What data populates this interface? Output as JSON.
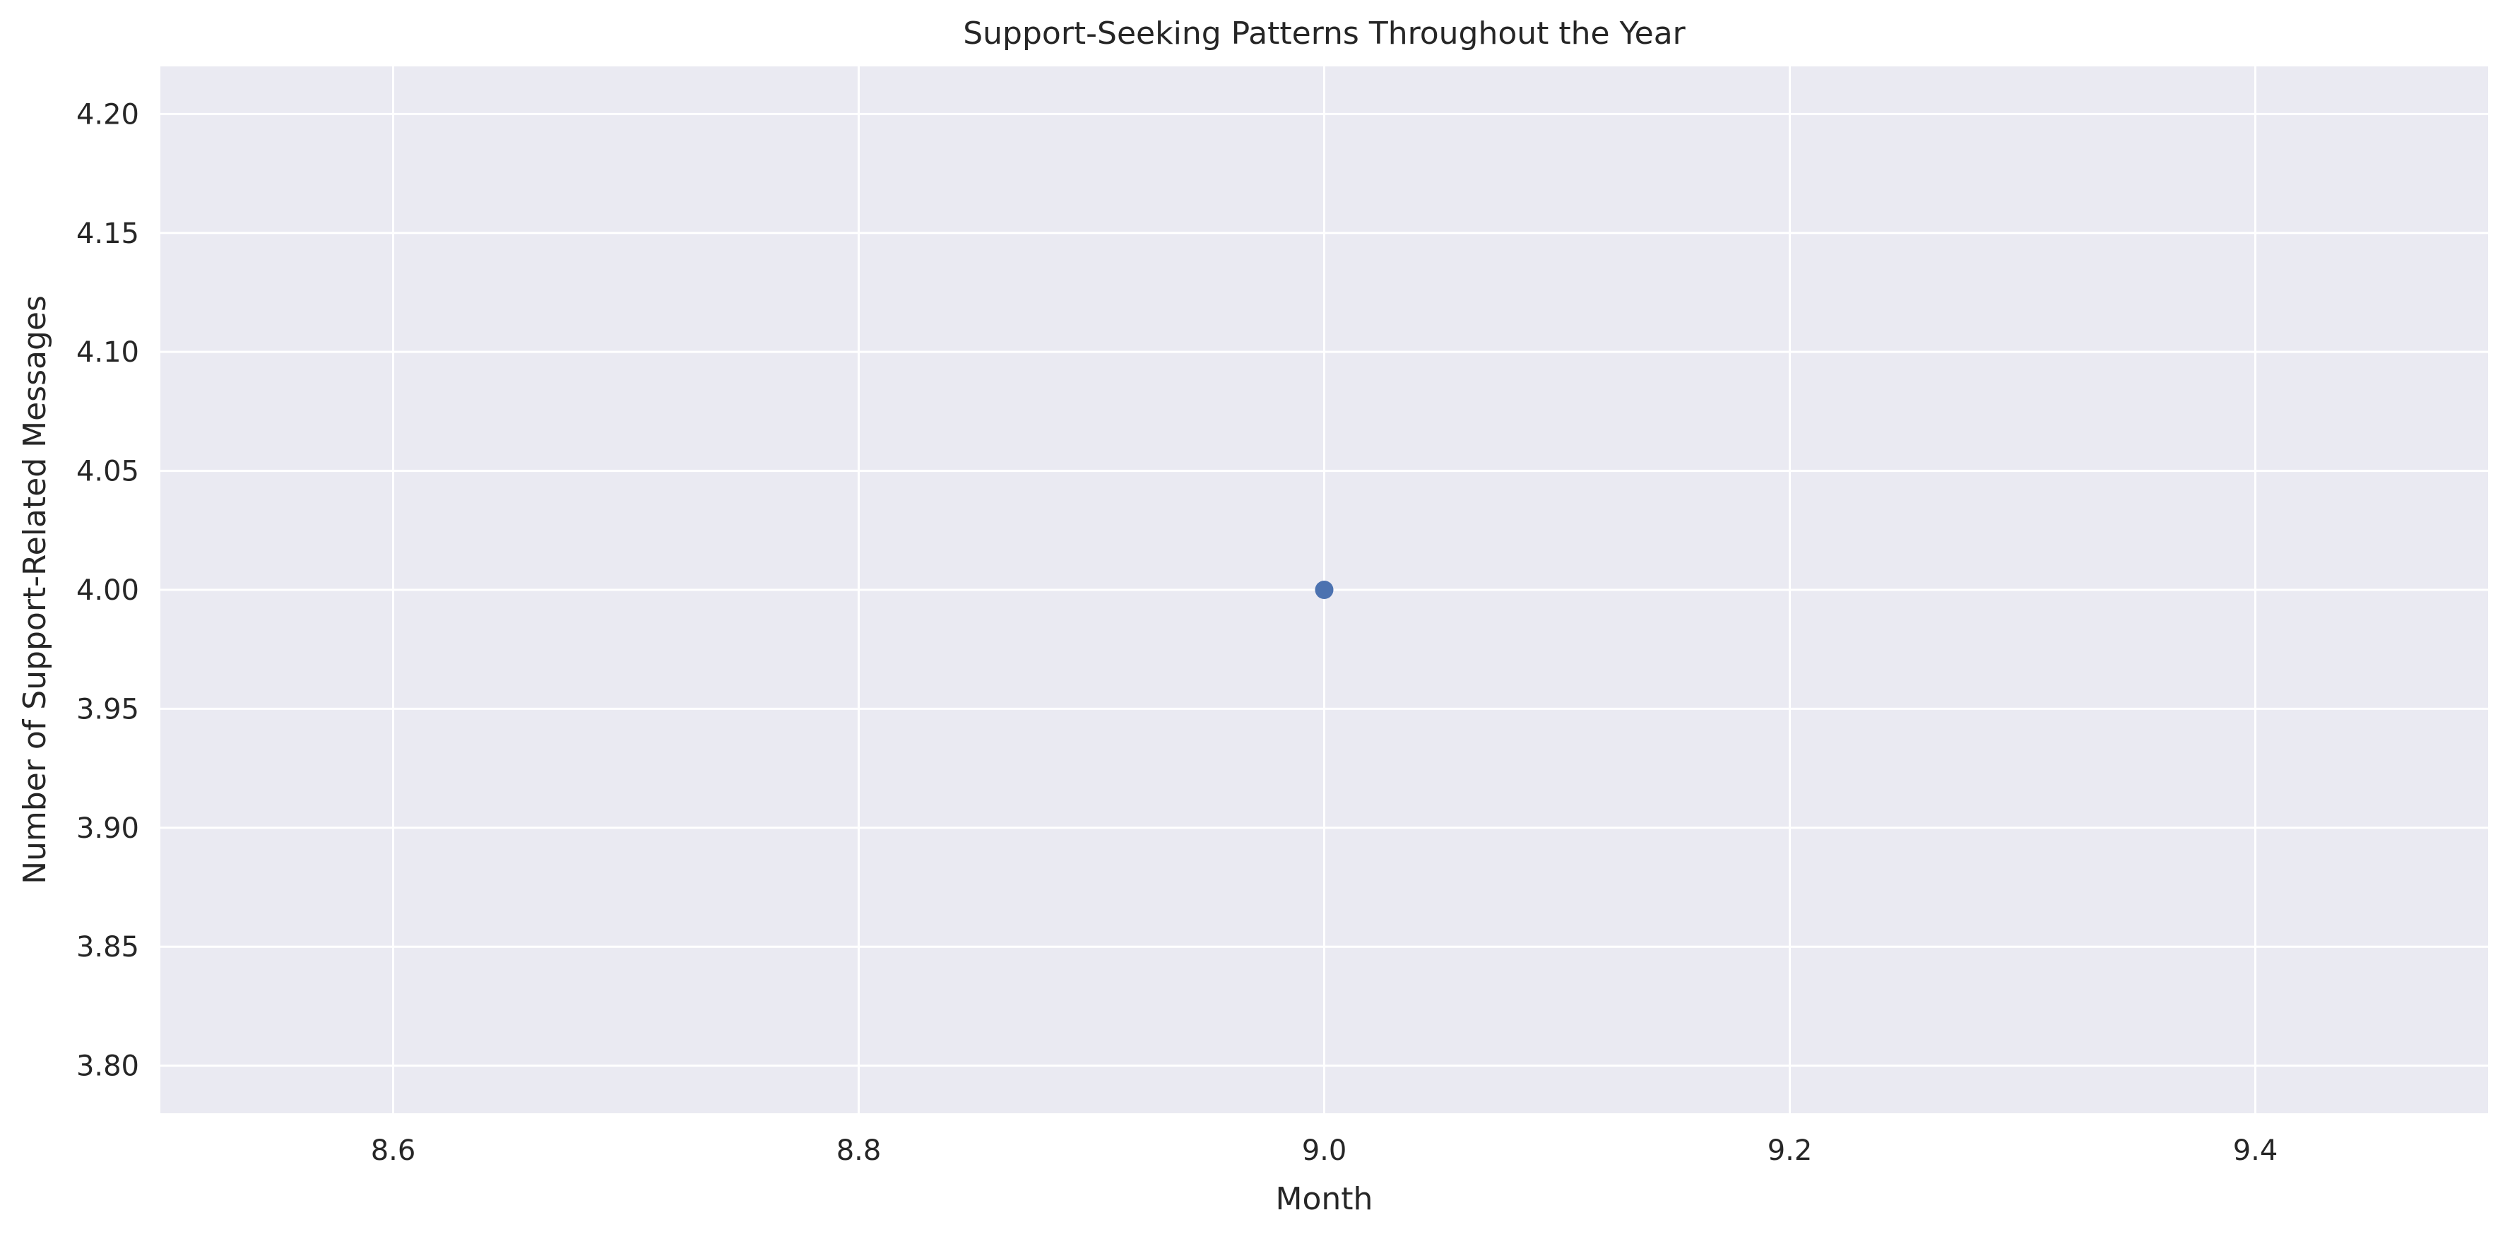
{
  "chart_data": {
    "type": "scatter",
    "title": "Support-Seeking Patterns Throughout the Year",
    "xlabel": "Month",
    "ylabel": "Number of Support-Related Messages",
    "xlim": [
      8.5,
      9.5
    ],
    "ylim": [
      3.78,
      4.22
    ],
    "x_ticks": [
      8.6,
      8.8,
      9.0,
      9.2,
      9.4
    ],
    "x_tick_labels": [
      "8.6",
      "8.8",
      "9.0",
      "9.2",
      "9.4"
    ],
    "y_ticks": [
      3.8,
      3.85,
      3.9,
      3.95,
      4.0,
      4.05,
      4.1,
      4.15,
      4.2
    ],
    "y_tick_labels": [
      "3.80",
      "3.85",
      "3.90",
      "3.95",
      "4.00",
      "4.05",
      "4.10",
      "4.15",
      "4.20"
    ],
    "points": [
      {
        "x": 9.0,
        "y": 4.0
      }
    ],
    "grid": true,
    "colors": {
      "plot_background": "#eaeaf2",
      "grid": "#ffffff",
      "marker": "#4c72b0",
      "text": "#262626"
    }
  }
}
